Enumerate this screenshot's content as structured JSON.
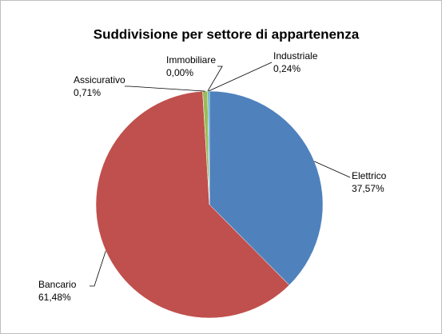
{
  "chart_data": {
    "type": "pie",
    "title": "Suddivisione per settore di appartenenza",
    "categories": [
      "Elettrico",
      "Bancario",
      "Assicurativo",
      "Immobiliare",
      "Industriale"
    ],
    "values": [
      37.57,
      61.48,
      0.71,
      0.0,
      0.24
    ],
    "value_labels": [
      "37,57%",
      "61,48%",
      "0,71%",
      "0,00%",
      "0,24%"
    ],
    "colors": [
      "#4f81bd",
      "#c0504d",
      "#9bbb59",
      "#8064a2",
      "#4bacc6"
    ]
  }
}
